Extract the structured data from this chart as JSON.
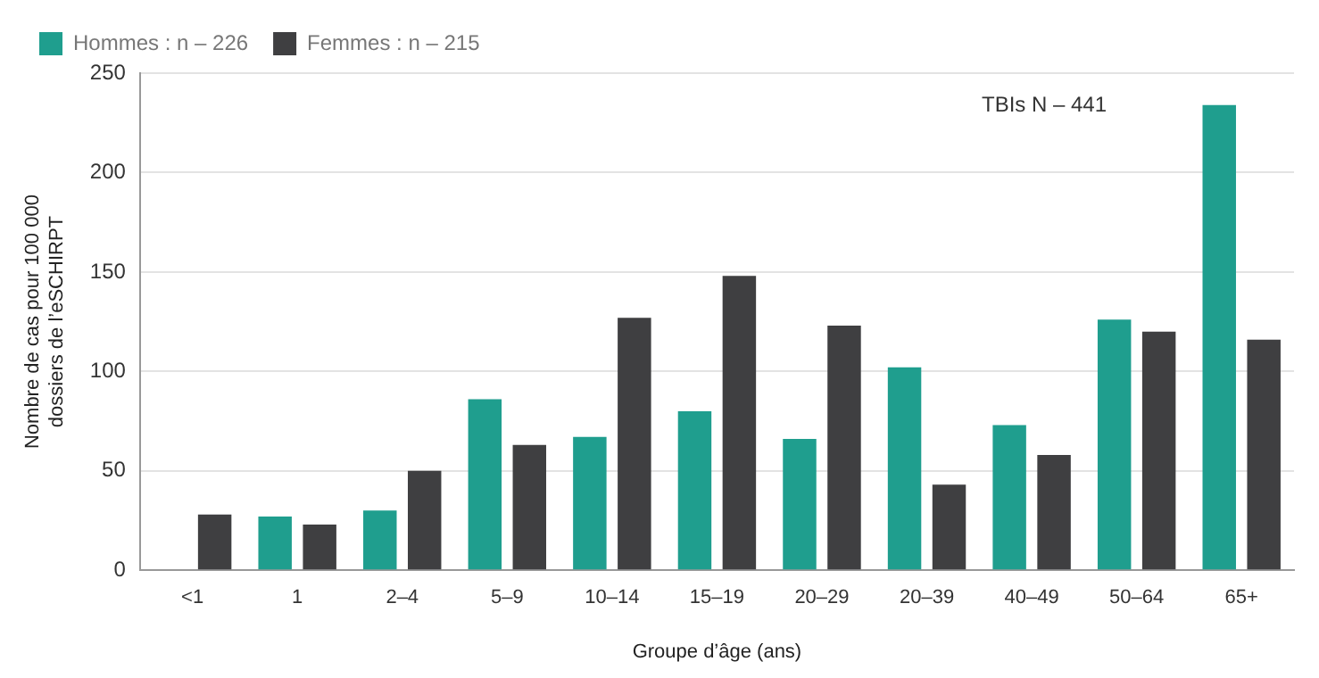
{
  "chart_data": {
    "type": "bar",
    "xlabel": "Groupe d’âge (ans)",
    "ylabel": "Nombre de cas pour 100 000 dossiers de l’eSCHIRPT",
    "categories": [
      "<1",
      "1",
      "2–4",
      "5–9",
      "10–14",
      "15–19",
      "20–29",
      "20–39",
      "40–49",
      "50–64",
      "65+"
    ],
    "series": [
      {
        "name": "Hommes : n – 226",
        "color": "#1f9e8e",
        "values": [
          null,
          27,
          30,
          86,
          67,
          80,
          66,
          102,
          73,
          126,
          234
        ]
      },
      {
        "name": "Femmes : n – 215",
        "color": "#3f3f41",
        "values": [
          28,
          23,
          50,
          63,
          127,
          148,
          123,
          43,
          58,
          120,
          116
        ]
      }
    ],
    "ylim": [
      0,
      250
    ],
    "yticks": [
      0,
      50,
      100,
      150,
      200,
      250
    ],
    "grid": "y",
    "legend": "top left",
    "annotations": [
      "TBIs N – 441"
    ]
  }
}
